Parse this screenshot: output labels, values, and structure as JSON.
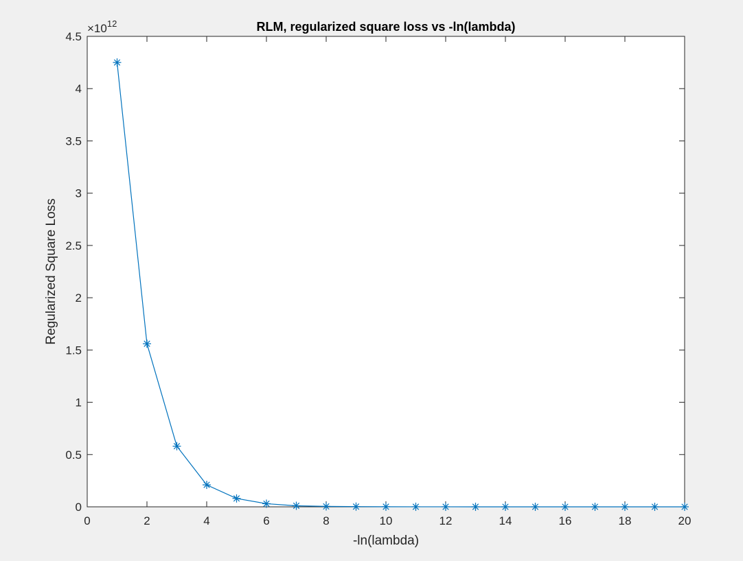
{
  "chart_data": {
    "type": "line",
    "title": "RLM, regularized square loss vs -ln(lambda)",
    "xlabel": "-ln(lambda)",
    "ylabel": "Regularized Square Loss",
    "y_exponent_label": "×10",
    "y_exponent_power": "12",
    "xlim": [
      0,
      20
    ],
    "ylim": [
      0,
      4.5
    ],
    "y_scale_factor": 1000000000000.0,
    "x_ticks": [
      0,
      2,
      4,
      6,
      8,
      10,
      12,
      14,
      16,
      18,
      20
    ],
    "y_ticks": [
      0,
      0.5,
      1,
      1.5,
      2,
      2.5,
      3,
      3.5,
      4,
      4.5
    ],
    "y_tick_labels": [
      "0",
      "0.5",
      "1",
      "1.5",
      "2",
      "2.5",
      "3",
      "3.5",
      "4",
      "4.5"
    ],
    "grid": false,
    "marker": "asterisk",
    "series": [
      {
        "color": "#0072bd",
        "x": [
          1,
          2,
          3,
          4,
          5,
          6,
          7,
          8,
          9,
          10,
          11,
          12,
          13,
          14,
          15,
          16,
          17,
          18,
          19,
          20
        ],
        "y": [
          4.25,
          1.56,
          0.58,
          0.21,
          0.08,
          0.03,
          0.01,
          0.004,
          0.002,
          0.001,
          0.0005,
          0.0003,
          0.0002,
          0.0001,
          0.0001,
          0.0001,
          0.0001,
          0.0001,
          0.0001,
          0.0001
        ]
      }
    ]
  }
}
